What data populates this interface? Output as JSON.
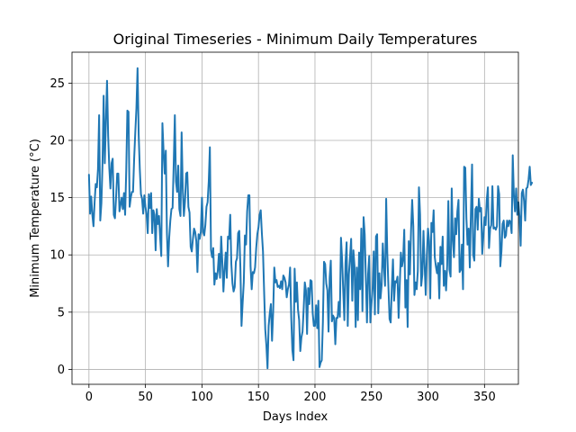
{
  "chart_data": {
    "type": "line",
    "title": "Original Timeseries - Minimum Daily Temperatures",
    "xlabel": "Days Index",
    "ylabel": "Minimum Temperature (°C)",
    "xlim": [
      -15,
      380
    ],
    "ylim": [
      -1.3,
      27.7
    ],
    "xticks": [
      0,
      50,
      100,
      150,
      200,
      250,
      300,
      350
    ],
    "yticks": [
      0,
      5,
      10,
      15,
      20,
      25
    ],
    "grid": true,
    "line_color": "#1f77b4",
    "series": [
      {
        "values": [
          17.0,
          13.6,
          15.1,
          13.5,
          12.5,
          14.6,
          16.2,
          15.9,
          17.5,
          22.2,
          13.0,
          14.5,
          18.0,
          23.9,
          18.0,
          21.6,
          25.2,
          20.4,
          17.6,
          15.8,
          18.0,
          18.4,
          13.5,
          13.2,
          15.0,
          17.1,
          17.1,
          13.8,
          14.4,
          15.0,
          14.0,
          15.4,
          13.5,
          17.4,
          22.6,
          22.5,
          14.2,
          15.0,
          15.5,
          15.5,
          18.4,
          20.7,
          22.8,
          26.3,
          20.5,
          17.5,
          15.3,
          14.9,
          13.6,
          15.2,
          14.2,
          13.5,
          11.9,
          15.3,
          14.1,
          15.4,
          11.9,
          13.9,
          13.5,
          10.4,
          14.0,
          12.7,
          13.4,
          11.5,
          9.9,
          21.5,
          19.1,
          17.1,
          19.1,
          11.9,
          9.0,
          11.5,
          13.0,
          14.0,
          14.1,
          17.9,
          22.2,
          16.4,
          15.5,
          17.8,
          14.0,
          13.4,
          20.7,
          15.8,
          13.4,
          14.7,
          17.1,
          17.2,
          14.2,
          13.7,
          10.7,
          10.3,
          11.4,
          12.3,
          12.0,
          11.2,
          8.5,
          11.8,
          11.4,
          12.0,
          15.0,
          12.0,
          11.7,
          12.6,
          14.2,
          14.6,
          16.4,
          19.4,
          10.4,
          9.8,
          10.6,
          7.4,
          8.4,
          7.9,
          8.6,
          10.1,
          8.0,
          11.6,
          9.4,
          6.8,
          8.7,
          10.2,
          8.0,
          11.6,
          11.4,
          13.5,
          9.2,
          7.5,
          6.8,
          7.2,
          9.4,
          9.7,
          11.9,
          12.1,
          8.9,
          3.8,
          5.8,
          7.6,
          11.7,
          10.9,
          13.8,
          15.2,
          15.2,
          9.0,
          7.0,
          8.5,
          8.4,
          8.9,
          10.6,
          11.8,
          12.4,
          13.5,
          13.9,
          11.9,
          10.3,
          6.8,
          3.5,
          2.1,
          0.1,
          3.8,
          4.9,
          5.7,
          2.5,
          5.0,
          8.9,
          7.6,
          7.8,
          7.2,
          7.3,
          7.1,
          7.7,
          7.0,
          8.2,
          8.0,
          7.6,
          6.3,
          7.0,
          7.4,
          8.9,
          4.5,
          1.7,
          0.8,
          8.8,
          5.9,
          7.6,
          5.2,
          4.3,
          1.6,
          2.8,
          3.3,
          5.3,
          7.6,
          6.9,
          3.1,
          7.1,
          5.7,
          7.8,
          7.7,
          4.9,
          3.8,
          3.8,
          5.6,
          3.6,
          6.0,
          0.2,
          0.6,
          0.8,
          4.1,
          9.4,
          9.2,
          7.5,
          6.9,
          3.3,
          8.0,
          9.5,
          4.2,
          4.7,
          4.5,
          2.2,
          4.5,
          4.5,
          5.9,
          4.6,
          11.5,
          9.6,
          6.8,
          4.3,
          9.3,
          11.1,
          3.8,
          8.3,
          9.8,
          11.4,
          6.0,
          10.4,
          9.0,
          3.7,
          8.9,
          4.3,
          10.2,
          7.0,
          12.3,
          5.1,
          13.3,
          11.8,
          8.0,
          4.1,
          8.3,
          9.9,
          4.1,
          5.7,
          7.1,
          10.3,
          4.8,
          11.6,
          11.8,
          4.9,
          8.4,
          6.2,
          7.4,
          11.0,
          9.0,
          7.3,
          14.9,
          10.1,
          7.2,
          4.4,
          4.1,
          7.2,
          9.6,
          6.0,
          7.7,
          7.6,
          8.1,
          4.5,
          7.3,
          10.2,
          9.0,
          9.6,
          12.2,
          5.4,
          7.8,
          3.7,
          11.2,
          8.3,
          12.1,
          14.8,
          12.5,
          6.5,
          7.6,
          7.0,
          8.6,
          15.9,
          13.5,
          7.3,
          8.3,
          12.1,
          9.1,
          6.5,
          10.0,
          12.3,
          11.2,
          6.2,
          12.8,
          12.0,
          13.9,
          9.8,
          9.0,
          8.4,
          9.3,
          6.2,
          10.7,
          9.2,
          11.6,
          7.3,
          8.6,
          6.9,
          9.1,
          14.7,
          8.7,
          8.1,
          15.8,
          11.3,
          9.8,
          13.2,
          11.8,
          13.8,
          14.8,
          8.5,
          8.7,
          10.9,
          7.0,
          17.7,
          17.6,
          13.2,
          10.9,
          12.3,
          8.9,
          13.7,
          17.9,
          10.0,
          9.5,
          14.0,
          14.2,
          12.2,
          14.9,
          13.8,
          14.1,
          10.1,
          11.6,
          13.3,
          12.6,
          14.8,
          15.9,
          10.6,
          12.3,
          12.6,
          16.0,
          12.3,
          12.4,
          12.2,
          12.5,
          16.0,
          15.3,
          9.0,
          10.3,
          12.7,
          13.0,
          11.5,
          11.7,
          13.0,
          12.5,
          13.0,
          12.9,
          11.9,
          18.7,
          15.2,
          13.8,
          15.8,
          13.5,
          14.6,
          13.3,
          10.8,
          15.4,
          15.7,
          14.7,
          13.0,
          15.8,
          15.9,
          16.6,
          17.7,
          16.1,
          16.3
        ]
      }
    ]
  }
}
